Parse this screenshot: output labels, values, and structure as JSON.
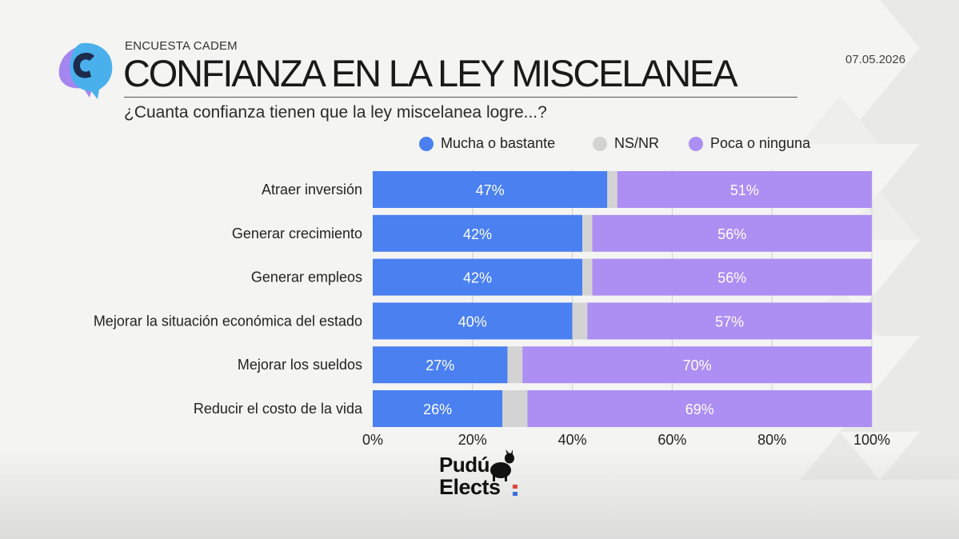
{
  "header": {
    "eyebrow": "ENCUESTA CADEM",
    "title": "CONFIANZA EN LA LEY MISCELANEA",
    "subtitle": "¿Cuanta confianza tienen que la ley miscelanea logre...?",
    "date": "07.05.2026"
  },
  "branding": {
    "logo_icon": "speech-bubble-logo-icon",
    "brand_line1": "Pudú",
    "brand_line2": "Elects",
    "brand_icon": "pudu-deer-icon"
  },
  "colors": {
    "mucha": "#4a80f0",
    "nsnr": "#d3d3d3",
    "poca": "#ad8ef3",
    "grid": "#cfcfcf",
    "logo_blue": "#4ab0ec",
    "logo_purple": "#a586f0",
    "logo_navy": "#1e2b4d"
  },
  "chart_data": {
    "type": "bar",
    "orientation": "horizontal",
    "stacked": true,
    "categories": [
      "Atraer inversión",
      "Generar crecimiento",
      "Generar empleos",
      "Mejorar la situación económica del estado",
      "Mejorar los sueldos",
      "Reducir el costo de la vida"
    ],
    "series": [
      {
        "name": "Mucha o bastante",
        "values": [
          47,
          42,
          42,
          40,
          27,
          26
        ],
        "labels": [
          "47%",
          "42%",
          "42%",
          "40%",
          "27%",
          "26%"
        ],
        "color": "#4a80f0"
      },
      {
        "name": "NS/NR",
        "values": [
          2,
          2,
          2,
          3,
          3,
          5
        ],
        "color": "#d3d3d3"
      },
      {
        "name": "Poca o ninguna",
        "values": [
          51,
          56,
          56,
          57,
          70,
          69
        ],
        "labels": [
          "51%",
          "56%",
          "56%",
          "57%",
          "70%",
          "69%"
        ],
        "color": "#ad8ef3"
      }
    ],
    "xlim": [
      0,
      100
    ],
    "xticks": [
      "0%",
      "20%",
      "40%",
      "60%",
      "80%",
      "100%"
    ],
    "grid": true,
    "legend": "top"
  }
}
